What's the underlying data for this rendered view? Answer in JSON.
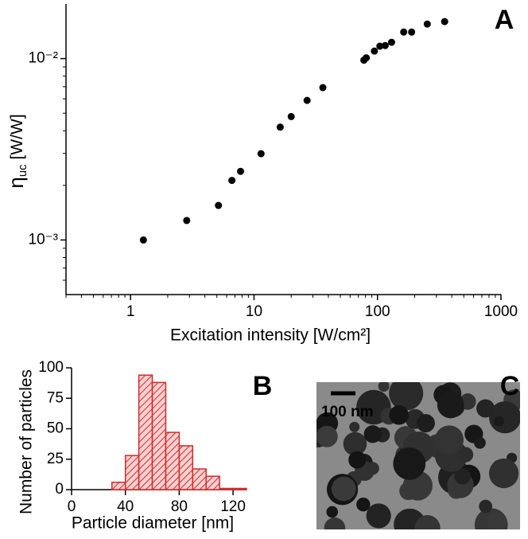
{
  "chart_data": [
    {
      "type": "scatter",
      "label": "A",
      "x_label": "Excitation intensity [W/cm²]",
      "y_label": [
        "η",
        "uc",
        " [W/W]"
      ],
      "x": [
        1.27,
        2.85,
        5.15,
        6.62,
        7.78,
        11.4,
        16.3,
        20,
        26.9,
        36.1,
        77.6,
        81.1,
        94.4,
        104.5,
        115.5,
        130,
        163,
        189,
        253,
        350
      ],
      "values": [
        0.001,
        0.00128,
        0.00155,
        0.00213,
        0.00239,
        0.00299,
        0.00419,
        0.00479,
        0.00588,
        0.00692,
        0.0098,
        0.0101,
        0.011,
        0.0117,
        0.0118,
        0.0123,
        0.014,
        0.014,
        0.0155,
        0.016
      ],
      "color": "#000000",
      "xlim": [
        0.3,
        1000
      ],
      "ylim": [
        0.0005,
        0.02
      ],
      "xticks": [
        1,
        10,
        100,
        1000
      ],
      "yticks": [
        {
          "value": 0.001,
          "label": "10⁻³"
        },
        {
          "value": 0.01,
          "label": "10⁻²"
        }
      ],
      "x_log": true,
      "y_log": true
    },
    {
      "type": "histogram",
      "label": "B",
      "x_label": "Particle diameter [nm]",
      "y_label": "Number of particles",
      "bins": [
        30,
        40,
        50,
        60,
        70,
        80,
        90,
        100,
        110,
        120,
        130
      ],
      "counts": [
        6,
        28,
        94,
        88,
        47,
        36,
        17,
        11,
        1,
        1
      ],
      "color": "#d42a2a",
      "xlim": [
        0,
        130
      ],
      "ylim": [
        0,
        100
      ],
      "xticks": [
        0,
        40,
        80,
        120
      ],
      "yticks": [
        0,
        25,
        50,
        75,
        100
      ]
    }
  ],
  "image": {
    "label": "C",
    "scale_bar": "100 nm"
  }
}
